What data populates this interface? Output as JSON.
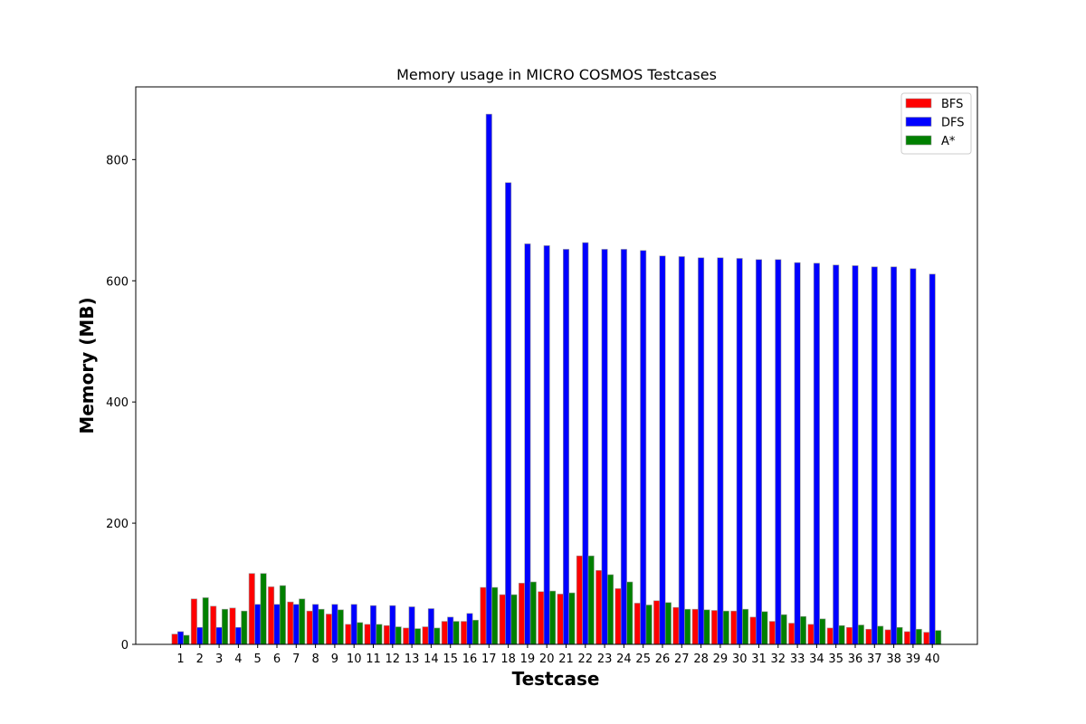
{
  "chart_data": {
    "type": "bar",
    "title": "Memory usage in MICRO COSMOS Testcases",
    "xlabel": "Testcase",
    "ylabel": "Memory (MB)",
    "ylim": [
      0,
      920
    ],
    "yticks": [
      0,
      200,
      400,
      600,
      800
    ],
    "grid": false,
    "legend_position": "top-right",
    "categories": [
      "1",
      "2",
      "3",
      "4",
      "5",
      "6",
      "7",
      "8",
      "9",
      "10",
      "11",
      "12",
      "13",
      "14",
      "15",
      "16",
      "17",
      "18",
      "19",
      "20",
      "21",
      "22",
      "23",
      "24",
      "25",
      "26",
      "27",
      "28",
      "29",
      "30",
      "31",
      "32",
      "33",
      "34",
      "35",
      "36",
      "37",
      "38",
      "39",
      "40"
    ],
    "series": [
      {
        "name": "BFS",
        "color": "#ff0000",
        "values": [
          17,
          75,
          63,
          60,
          117,
          95,
          70,
          55,
          50,
          33,
          33,
          31,
          27,
          29,
          38,
          38,
          94,
          82,
          101,
          87,
          83,
          146,
          122,
          92,
          68,
          72,
          61,
          58,
          56,
          55,
          45,
          38,
          35,
          33,
          27,
          28,
          25,
          24,
          21,
          20
        ]
      },
      {
        "name": "DFS",
        "color": "#0000ff",
        "values": [
          21,
          28,
          28,
          28,
          66,
          66,
          66,
          66,
          66,
          66,
          64,
          64,
          62,
          59,
          45,
          51,
          875,
          762,
          661,
          658,
          652,
          663,
          652,
          652,
          650,
          641,
          640,
          638,
          638,
          637,
          635,
          635,
          630,
          629,
          626,
          625,
          623,
          623,
          620,
          611
        ]
      },
      {
        "name": "A*",
        "color": "#008000",
        "values": [
          15,
          77,
          58,
          55,
          117,
          97,
          75,
          58,
          57,
          36,
          33,
          29,
          26,
          27,
          38,
          40,
          94,
          82,
          103,
          88,
          85,
          146,
          115,
          103,
          65,
          69,
          58,
          57,
          55,
          58,
          54,
          49,
          46,
          42,
          31,
          32,
          30,
          28,
          25,
          23
        ]
      }
    ]
  }
}
